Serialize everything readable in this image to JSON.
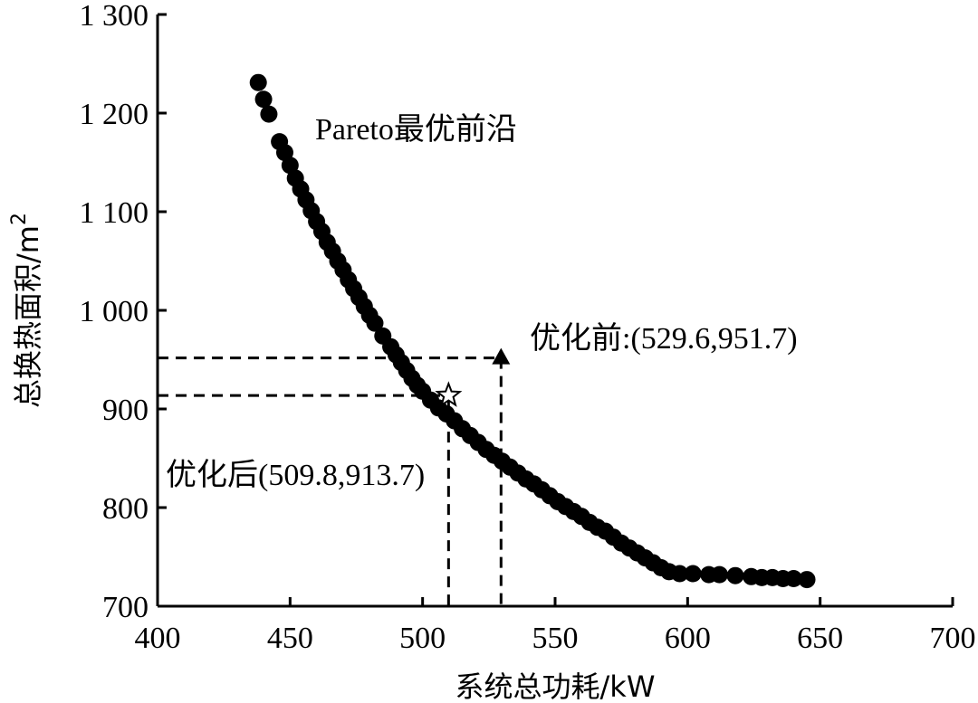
{
  "chart_data": {
    "type": "scatter",
    "title": "",
    "xlabel": "系统总功耗/kW",
    "ylabel": "总换热面积/m",
    "ylabel_sup": "2",
    "xlim": [
      400,
      700
    ],
    "ylim": [
      700,
      1300
    ],
    "x_ticks": [
      400,
      450,
      500,
      550,
      600,
      650,
      700
    ],
    "x_tick_labels": [
      "400",
      "450",
      "500",
      "550",
      "600",
      "650",
      "700"
    ],
    "y_ticks": [
      700,
      800,
      900,
      1000,
      1100,
      1200,
      1300
    ],
    "y_tick_labels": [
      "700",
      "800",
      "900",
      "1 000",
      "1 100",
      "1 200",
      "1 300"
    ],
    "grid": false,
    "series": [
      {
        "name": "Pareto最优前沿",
        "points": [
          [
            438,
            1231
          ],
          [
            440,
            1214
          ],
          [
            442,
            1199
          ],
          [
            446,
            1171
          ],
          [
            448,
            1160
          ],
          [
            450,
            1147
          ],
          [
            452,
            1134
          ],
          [
            454,
            1123
          ],
          [
            456,
            1112
          ],
          [
            458,
            1101
          ],
          [
            460,
            1090
          ],
          [
            462,
            1080
          ],
          [
            464,
            1069
          ],
          [
            466,
            1060
          ],
          [
            468,
            1050
          ],
          [
            470,
            1041
          ],
          [
            472,
            1031
          ],
          [
            474,
            1022
          ],
          [
            476,
            1013
          ],
          [
            478,
            1004
          ],
          [
            480,
            995
          ],
          [
            482,
            987
          ],
          [
            485,
            974
          ],
          [
            488,
            963
          ],
          [
            490,
            955
          ],
          [
            492,
            947
          ],
          [
            494,
            939
          ],
          [
            496,
            931
          ],
          [
            498,
            924
          ],
          [
            500,
            918
          ],
          [
            503,
            909
          ],
          [
            506,
            901
          ],
          [
            509,
            895
          ],
          [
            512,
            888
          ],
          [
            515,
            880
          ],
          [
            518,
            873
          ],
          [
            521,
            866
          ],
          [
            524,
            859
          ],
          [
            527,
            853
          ],
          [
            530,
            847
          ],
          [
            533,
            841
          ],
          [
            536,
            835
          ],
          [
            539,
            829
          ],
          [
            542,
            824
          ],
          [
            545,
            818
          ],
          [
            548,
            812
          ],
          [
            551,
            806
          ],
          [
            554,
            801
          ],
          [
            557,
            796
          ],
          [
            560,
            791
          ],
          [
            563,
            785
          ],
          [
            566,
            780
          ],
          [
            569,
            776
          ],
          [
            572,
            770
          ],
          [
            575,
            764
          ],
          [
            578,
            759
          ],
          [
            581,
            754
          ],
          [
            584,
            749
          ],
          [
            587,
            744
          ],
          [
            590,
            739
          ],
          [
            593,
            735
          ],
          [
            597,
            733
          ],
          [
            602,
            733
          ],
          [
            608,
            732
          ],
          [
            612,
            732
          ],
          [
            618,
            731
          ],
          [
            624,
            730
          ],
          [
            628,
            729
          ],
          [
            632,
            729
          ],
          [
            636,
            728
          ],
          [
            640,
            728
          ],
          [
            645,
            727
          ]
        ]
      }
    ],
    "annotations": [
      {
        "id": "before",
        "label": "优化前:(529.6,951.7)",
        "x": 529.6,
        "y": 951.7,
        "marker": "triangle"
      },
      {
        "id": "after",
        "label": "优化后(509.8,913.7)",
        "x": 509.8,
        "y": 913.7,
        "marker": "star"
      }
    ],
    "series_label": "Pareto最优前沿"
  }
}
